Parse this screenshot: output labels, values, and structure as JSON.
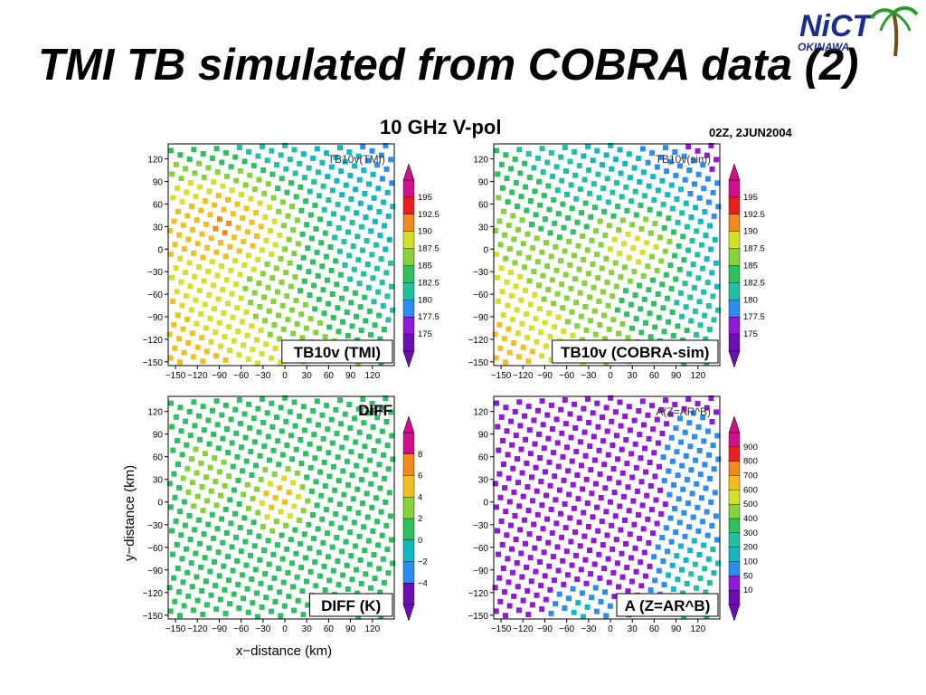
{
  "slide": {
    "title": "TMI TB simulated from COBRA data (2)",
    "subtitle": "10 GHz V-pol",
    "date": "02Z, 2JUN2004",
    "logo": {
      "name": "NiCT",
      "sub": "OKINAWA"
    }
  },
  "axes": {
    "ticks": [
      "−150",
      "−120",
      "−90",
      "−60",
      "−30",
      "0",
      "30",
      "60",
      "90",
      "120"
    ],
    "xlabel": "x−distance  (km)",
    "ylabel": "y−distance  (km)"
  },
  "palette": [
    "#6a0fb0",
    "#9018d8",
    "#2d8cf0",
    "#12b7c0",
    "#20c0a0",
    "#2ec060",
    "#86d23a",
    "#d4e02a",
    "#f0c022",
    "#ef8a1e",
    "#e72020",
    "#d0108a"
  ],
  "panels": [
    {
      "label": "TB10v (TMI)",
      "inner_label": "TB10v(TMI)",
      "colorbar_ticks": [
        "195",
        "192.5",
        "190",
        "187.5",
        "185",
        "182.5",
        "180",
        "177.5",
        "175"
      ]
    },
    {
      "label": "TB10v (COBRA-sim)",
      "inner_label": "TB10v(sim)",
      "colorbar_ticks": [
        "195",
        "192.5",
        "190",
        "187.5",
        "185",
        "182.5",
        "180",
        "177.5",
        "175"
      ]
    },
    {
      "label": "DIFF (K)",
      "inner_label": "DIFF",
      "overlay_label": "DIFF",
      "colorbar_ticks": [
        "8",
        "6",
        "4",
        "2",
        "0",
        "−2",
        "−4"
      ]
    },
    {
      "label": "A (Z=AR^B)",
      "inner_label": "A(Z=AR^B)",
      "colorbar_ticks": [
        "900",
        "800",
        "700",
        "600",
        "500",
        "400",
        "300",
        "200",
        "100",
        "50",
        "10"
      ]
    }
  ]
}
